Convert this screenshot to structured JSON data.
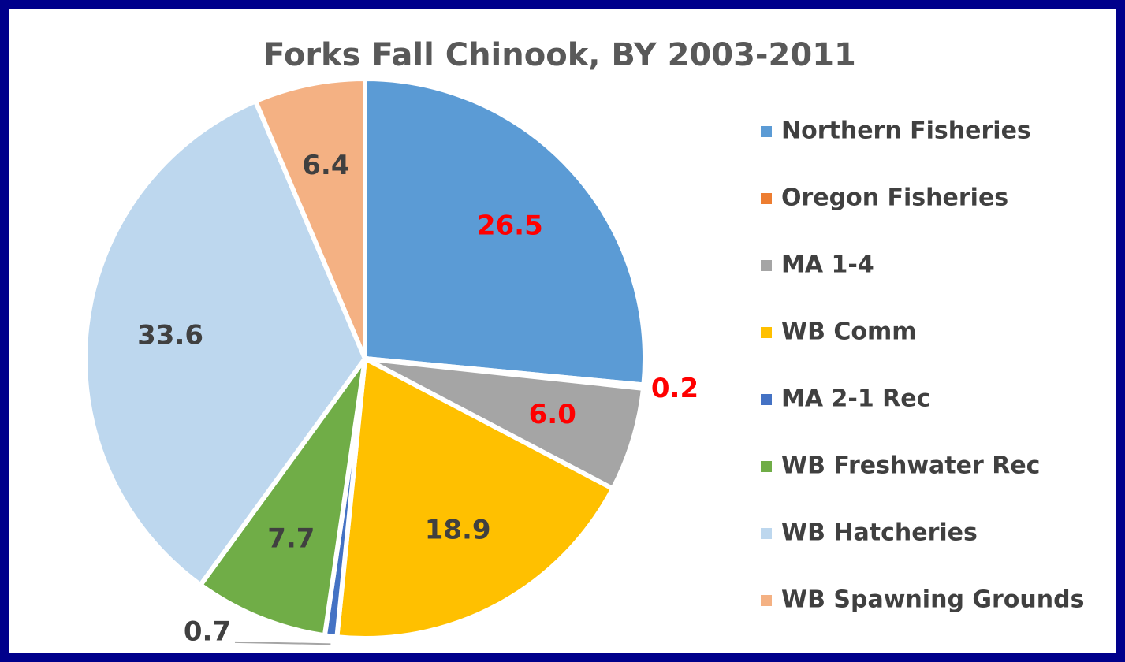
{
  "chart_data": {
    "type": "pie",
    "title": "Forks Fall Chinook, BY 2003-2011",
    "categories": [
      "Northern Fisheries",
      "Oregon Fisheries",
      "MA 1-4",
      "WB Comm",
      "MA 2-1 Rec",
      "WB Freshwater Rec",
      "WB Hatcheries",
      "WB Spawning Grounds"
    ],
    "values": [
      26.5,
      0.2,
      6.0,
      18.9,
      0.7,
      7.7,
      33.6,
      6.4
    ],
    "value_labels": [
      "26.5",
      "0.2",
      "6.0",
      "18.9",
      "0.7",
      "7.7",
      "33.6",
      "6.4"
    ],
    "colors": [
      "#5b9bd5",
      "#ed7d31",
      "#a5a5a5",
      "#ffc000",
      "#4472c4",
      "#70ad47",
      "#bdd7ee",
      "#f4b183"
    ],
    "label_colors": [
      "#ff0000",
      "#ff0000",
      "#ff0000",
      "#404040",
      "#404040",
      "#404040",
      "#404040",
      "#404040"
    ],
    "legend": "right"
  }
}
